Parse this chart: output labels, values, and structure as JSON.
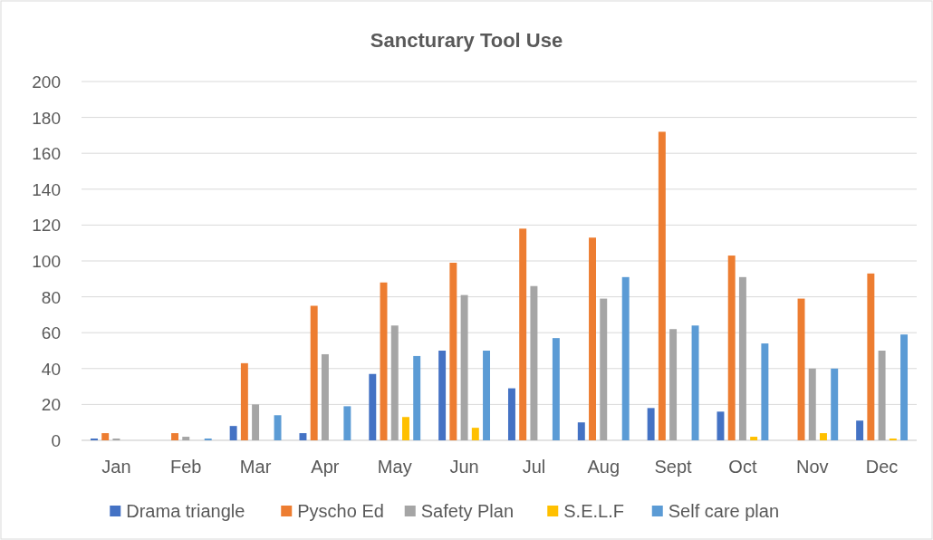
{
  "chart_data": {
    "type": "bar",
    "title": "Sancturary Tool Use",
    "categories": [
      "Jan",
      "Feb",
      "Mar",
      "Apr",
      "May",
      "Jun",
      "Jul",
      "Aug",
      "Sept",
      "Oct",
      "Nov",
      "Dec"
    ],
    "series": [
      {
        "name": "Drama triangle",
        "color": "#4472c4",
        "values": [
          1,
          0,
          8,
          4,
          37,
          50,
          29,
          10,
          18,
          16,
          0,
          11
        ]
      },
      {
        "name": "Pyscho Ed",
        "color": "#ed7d31",
        "values": [
          4,
          4,
          43,
          75,
          88,
          99,
          118,
          113,
          172,
          103,
          79,
          93
        ]
      },
      {
        "name": "Safety Plan",
        "color": "#a5a5a5",
        "values": [
          1,
          2,
          20,
          48,
          64,
          81,
          86,
          79,
          62,
          91,
          40,
          50
        ]
      },
      {
        "name": "S.E.L.F",
        "color": "#ffc000",
        "values": [
          0,
          0,
          0,
          0,
          13,
          7,
          0,
          0,
          0,
          2,
          4,
          1
        ]
      },
      {
        "name": "Self care plan",
        "color": "#5b9bd5",
        "values": [
          0,
          1,
          14,
          19,
          47,
          50,
          57,
          91,
          64,
          54,
          40,
          59
        ]
      }
    ],
    "ylim": [
      0,
      200
    ],
    "yticks": [
      0,
      20,
      40,
      60,
      80,
      100,
      120,
      140,
      160,
      180,
      200
    ],
    "grid": "y",
    "legend": "bottom"
  }
}
